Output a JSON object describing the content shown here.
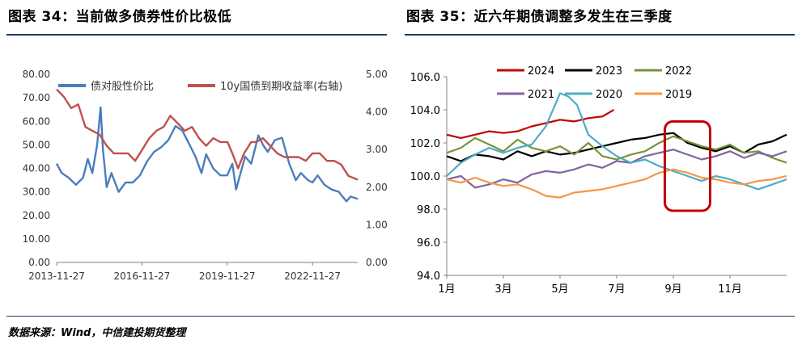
{
  "header": {
    "left_title": "图表  34：当前做多债券性价比极低",
    "right_title": "图表  35：近六年期债调整多发生在三季度"
  },
  "footer": {
    "source": "数据来源：Wind，中信建投期货整理"
  },
  "colors": {
    "rule": "#1f3864",
    "blue_series": "#4a7ebb",
    "red_series": "#c0504d",
    "highlight_box": "#c00000"
  },
  "chart_data": [
    {
      "type": "line",
      "y_left_ticks": [
        "80.00",
        "70.00",
        "60.00",
        "50.00",
        "40.00",
        "30.00",
        "20.00",
        "10.00",
        "0.00"
      ],
      "y_right_ticks": [
        "5.00",
        "4.00",
        "3.00",
        "2.00",
        "1.00",
        "0.00"
      ],
      "x_ticks": [
        "2013-11-27",
        "2016-11-27",
        "2019-11-27",
        "2022-11-27"
      ],
      "ylim_left": [
        0,
        80
      ],
      "ylim_right": [
        0,
        5
      ],
      "x_domain": [
        "2013-11-27",
        "2024-06-30"
      ],
      "legend_placement": "top",
      "series": [
        {
          "name": "债对股性价比",
          "axis": "left",
          "color": "#4a7ebb",
          "dates": [
            "2013-11-27",
            "2014-02-01",
            "2014-05-01",
            "2014-08-01",
            "2014-11-01",
            "2015-01-01",
            "2015-03-01",
            "2015-05-01",
            "2015-06-15",
            "2015-07-15",
            "2015-09-01",
            "2015-11-01",
            "2016-02-01",
            "2016-05-01",
            "2016-08-01",
            "2016-11-01",
            "2017-02-01",
            "2017-05-01",
            "2017-08-01",
            "2017-11-01",
            "2018-02-01",
            "2018-05-01",
            "2018-08-01",
            "2018-10-15",
            "2019-01-01",
            "2019-03-01",
            "2019-06-01",
            "2019-09-01",
            "2019-11-27",
            "2020-02-01",
            "2020-03-20",
            "2020-05-01",
            "2020-07-15",
            "2020-10-01",
            "2021-01-01",
            "2021-03-01",
            "2021-05-01",
            "2021-08-01",
            "2021-11-01",
            "2022-02-01",
            "2022-04-27",
            "2022-07-01",
            "2022-10-01",
            "2022-11-27",
            "2023-02-01",
            "2023-05-01",
            "2023-08-01",
            "2023-11-01",
            "2024-02-05",
            "2024-04-01",
            "2024-06-30"
          ],
          "values": [
            42,
            38,
            36,
            33,
            36,
            44,
            38,
            50,
            66,
            48,
            32,
            38,
            30,
            34,
            34,
            37,
            43,
            47,
            49,
            52,
            58,
            56,
            50,
            45,
            38,
            46,
            40,
            37,
            37,
            42,
            31,
            36,
            45,
            42,
            54,
            50,
            47,
            52,
            53,
            42,
            35,
            38,
            35,
            34,
            37,
            33,
            31,
            30,
            26,
            28,
            27
          ]
        },
        {
          "name": "10y国债到期收益率(右轴)",
          "axis": "right",
          "color": "#c0504d",
          "dates": [
            "2013-11-27",
            "2014-03-01",
            "2014-06-01",
            "2014-09-01",
            "2014-12-01",
            "2015-03-01",
            "2015-06-01",
            "2015-09-01",
            "2015-12-01",
            "2016-03-01",
            "2016-06-01",
            "2016-09-01",
            "2016-12-01",
            "2017-03-01",
            "2017-06-01",
            "2017-09-01",
            "2017-11-27",
            "2018-03-01",
            "2018-06-01",
            "2018-09-01",
            "2018-12-01",
            "2019-03-01",
            "2019-06-01",
            "2019-09-01",
            "2019-12-01",
            "2020-02-01",
            "2020-04-15",
            "2020-07-01",
            "2020-10-01",
            "2020-12-01",
            "2021-03-01",
            "2021-06-01",
            "2021-09-01",
            "2021-12-01",
            "2022-03-01",
            "2022-06-01",
            "2022-09-01",
            "2022-11-27",
            "2023-03-01",
            "2023-06-01",
            "2023-09-01",
            "2023-12-01",
            "2024-03-01",
            "2024-06-30"
          ],
          "values": [
            4.6,
            4.4,
            4.1,
            4.2,
            3.6,
            3.5,
            3.4,
            3.1,
            2.9,
            2.9,
            2.9,
            2.7,
            3.0,
            3.3,
            3.5,
            3.6,
            3.9,
            3.7,
            3.5,
            3.6,
            3.3,
            3.1,
            3.3,
            3.2,
            3.2,
            2.9,
            2.5,
            2.9,
            3.2,
            3.2,
            3.3,
            3.1,
            2.9,
            2.8,
            2.8,
            2.8,
            2.7,
            2.9,
            2.9,
            2.7,
            2.7,
            2.6,
            2.3,
            2.2
          ]
        }
      ]
    },
    {
      "type": "line",
      "y_ticks": [
        "106.0",
        "104.0",
        "102.0",
        "100.0",
        "98.0",
        "96.0",
        "94.0"
      ],
      "x_ticks": [
        "1月",
        "3月",
        "5月",
        "7月",
        "9月",
        "11月"
      ],
      "ylim": [
        94,
        106
      ],
      "x_unit": "month",
      "xlim": [
        1,
        13
      ],
      "legend_placement": "top",
      "highlight": {
        "x_range": [
          8.7,
          10.3
        ],
        "y_range": [
          97.9,
          103.3
        ]
      },
      "series": [
        {
          "name": "2024",
          "color": "#c00000",
          "x": [
            1,
            1.5,
            2,
            2.5,
            3,
            3.5,
            4,
            4.5,
            5,
            5.5,
            6,
            6.5,
            6.9
          ],
          "values": [
            102.5,
            102.3,
            102.5,
            102.7,
            102.6,
            102.7,
            103.0,
            103.2,
            103.4,
            103.3,
            103.5,
            103.6,
            104.0
          ]
        },
        {
          "name": "2023",
          "color": "#000000",
          "x": [
            1,
            1.5,
            2,
            2.5,
            3,
            3.5,
            4,
            4.5,
            5,
            5.5,
            6,
            6.5,
            7,
            7.5,
            8,
            8.5,
            9,
            9.5,
            10,
            10.5,
            11,
            11.5,
            12,
            12.5,
            13
          ],
          "values": [
            101.2,
            100.9,
            101.3,
            101.2,
            101.0,
            101.5,
            101.2,
            101.5,
            101.3,
            101.4,
            101.6,
            101.8,
            102.0,
            102.2,
            102.3,
            102.5,
            102.6,
            102.0,
            101.7,
            101.5,
            101.8,
            101.4,
            101.9,
            102.1,
            102.5
          ]
        },
        {
          "name": "2022",
          "color": "#77933c",
          "x": [
            1,
            1.5,
            2,
            2.5,
            3,
            3.5,
            4,
            4.5,
            5,
            5.5,
            6,
            6.5,
            7,
            7.5,
            8,
            8.5,
            9,
            9.5,
            10,
            10.5,
            11,
            11.5,
            12,
            12.5,
            13
          ],
          "values": [
            101.4,
            101.7,
            102.3,
            101.9,
            101.5,
            102.2,
            101.7,
            101.5,
            101.8,
            101.3,
            102.0,
            101.2,
            101.0,
            101.3,
            101.5,
            102.0,
            102.4,
            102.1,
            101.8,
            101.6,
            101.9,
            101.4,
            101.5,
            101.1,
            100.8
          ]
        },
        {
          "name": "2021",
          "color": "#8064a2",
          "x": [
            1,
            1.5,
            2,
            2.5,
            3,
            3.5,
            4,
            4.5,
            5,
            5.5,
            6,
            6.5,
            7,
            7.5,
            8,
            8.5,
            9,
            9.5,
            10,
            10.5,
            11,
            11.5,
            12,
            12.5,
            13
          ],
          "values": [
            99.8,
            100.0,
            99.3,
            99.5,
            99.8,
            99.6,
            100.1,
            100.3,
            100.2,
            100.4,
            100.7,
            100.5,
            100.9,
            100.8,
            101.2,
            101.4,
            101.6,
            101.3,
            101.0,
            101.2,
            101.5,
            101.1,
            101.4,
            101.2,
            101.5
          ]
        },
        {
          "name": "2020",
          "color": "#4bacc6",
          "x": [
            1,
            1.5,
            2,
            2.5,
            3,
            3.5,
            4,
            4.5,
            5,
            5.3,
            5.6,
            6,
            6.5,
            7,
            7.5,
            8,
            8.5,
            9,
            9.5,
            10,
            10.5,
            11,
            11.5,
            12,
            12.5,
            13
          ],
          "values": [
            100.0,
            100.8,
            101.3,
            101.7,
            101.4,
            101.7,
            101.9,
            103.0,
            105.0,
            104.8,
            104.3,
            102.5,
            101.8,
            101.2,
            100.8,
            101.0,
            100.6,
            100.3,
            100.0,
            99.7,
            100.0,
            99.8,
            99.5,
            99.2,
            99.5,
            99.8
          ]
        },
        {
          "name": "2019",
          "color": "#f79646",
          "x": [
            1,
            1.5,
            2,
            2.5,
            3,
            3.5,
            4,
            4.5,
            5,
            5.5,
            6,
            6.5,
            7,
            7.5,
            8,
            8.5,
            9,
            9.5,
            10,
            10.5,
            11,
            11.5,
            12,
            12.5,
            13
          ],
          "values": [
            99.8,
            99.6,
            99.9,
            99.6,
            99.4,
            99.5,
            99.2,
            98.8,
            98.7,
            99.0,
            99.1,
            99.2,
            99.4,
            99.6,
            99.8,
            100.2,
            100.4,
            100.2,
            99.9,
            99.8,
            99.6,
            99.5,
            99.7,
            99.8,
            100.0
          ]
        }
      ]
    }
  ]
}
